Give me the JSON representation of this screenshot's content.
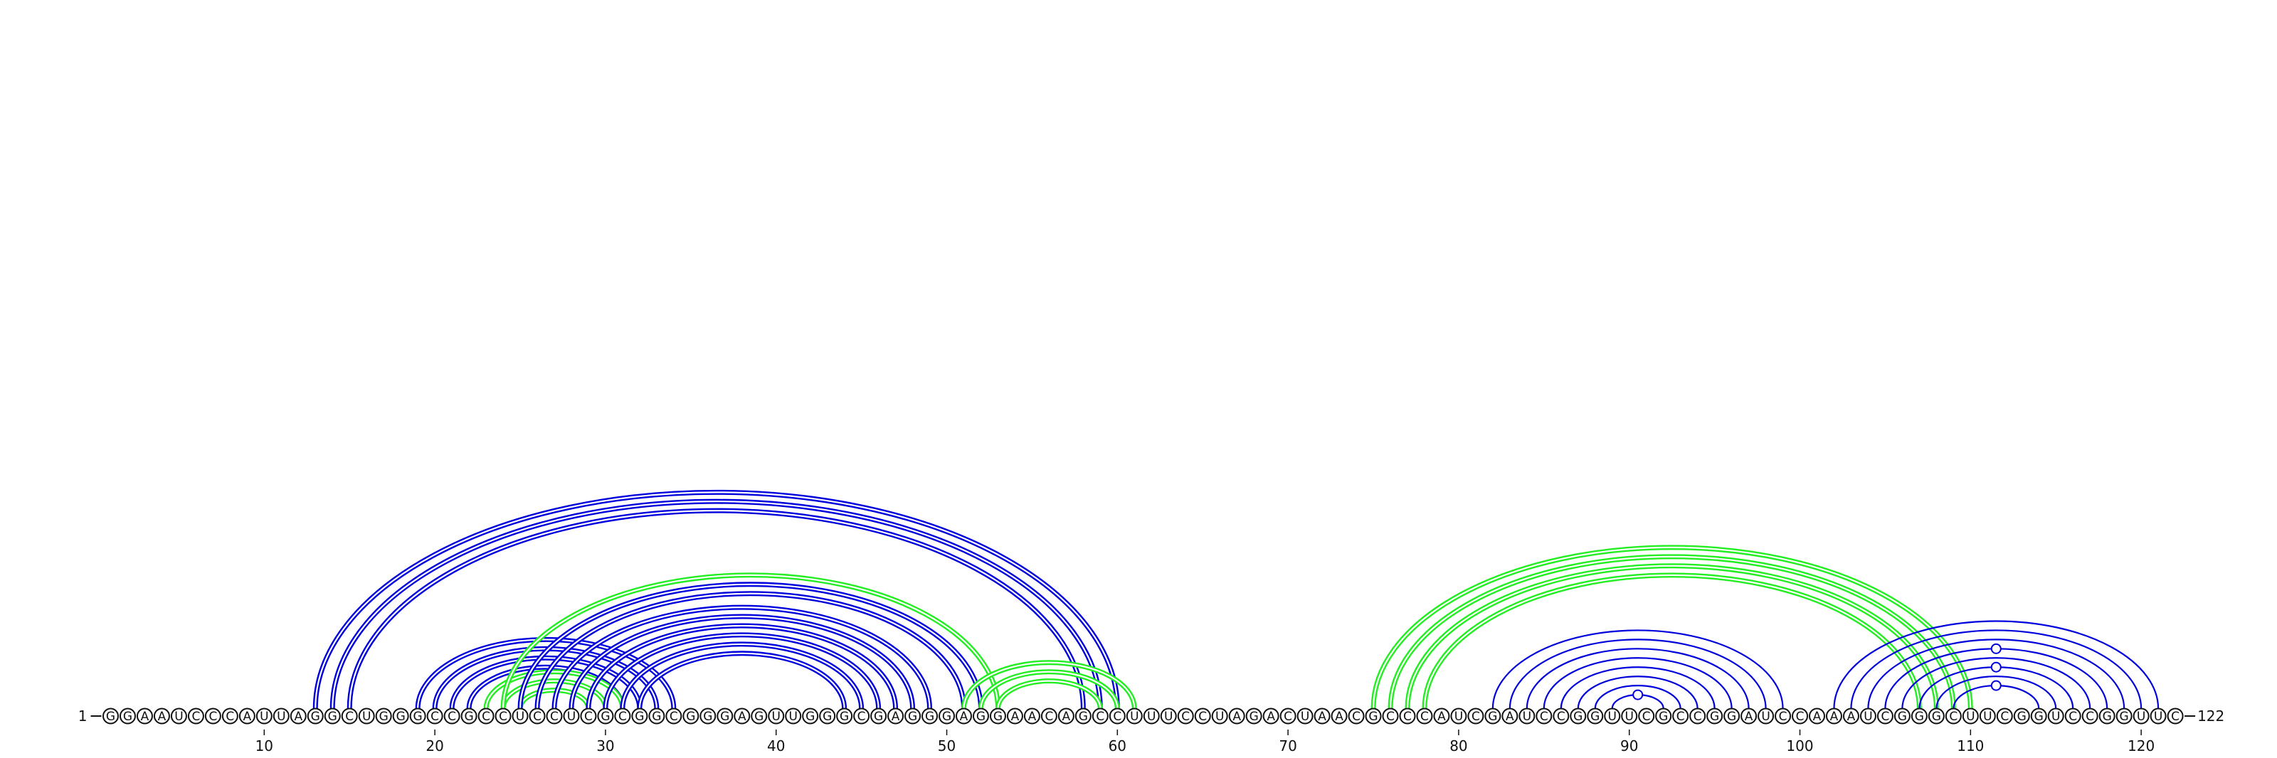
{
  "sequence": "GGAAUCCCAUUAGGCUGGGCCGCCUCCUCGCGGCGGGAGUUGGGCGAGGGAGGAACAGCCUUUCCUAGACUAACGCCCAUCGAUCCGGUUCGCCGGAUCCAAAUCGGGCUUCGGUCCGGUUC",
  "start_label": "1",
  "end_label": "122",
  "ticks": [
    "10",
    "20",
    "30",
    "40",
    "50",
    "60",
    "70",
    "80",
    "90",
    "100",
    "110",
    "120"
  ],
  "colors": {
    "blue": "#0000dd",
    "green": "#22ee22",
    "ink": "#111111"
  },
  "arcs": [
    {
      "i": 13,
      "j": 60,
      "color": "blue",
      "style": "double"
    },
    {
      "i": 14,
      "j": 59,
      "color": "blue",
      "style": "double"
    },
    {
      "i": 15,
      "j": 58,
      "color": "blue",
      "style": "double"
    },
    {
      "i": 19,
      "j": 34,
      "color": "blue",
      "style": "double"
    },
    {
      "i": 20,
      "j": 33,
      "color": "blue",
      "style": "double"
    },
    {
      "i": 21,
      "j": 32,
      "color": "blue",
      "style": "double"
    },
    {
      "i": 22,
      "j": 31,
      "color": "blue",
      "style": "double"
    },
    {
      "i": 23,
      "j": 31,
      "color": "green",
      "style": "double"
    },
    {
      "i": 24,
      "j": 30,
      "color": "green",
      "style": "double"
    },
    {
      "i": 25,
      "j": 29,
      "color": "green",
      "style": "double"
    },
    {
      "i": 24,
      "j": 53,
      "color": "green",
      "style": "double"
    },
    {
      "i": 25,
      "j": 52,
      "color": "blue",
      "style": "double"
    },
    {
      "i": 26,
      "j": 51,
      "color": "blue",
      "style": "double"
    },
    {
      "i": 27,
      "j": 49,
      "color": "blue",
      "style": "double"
    },
    {
      "i": 28,
      "j": 48,
      "color": "blue",
      "style": "double"
    },
    {
      "i": 29,
      "j": 47,
      "color": "blue",
      "style": "double"
    },
    {
      "i": 30,
      "j": 46,
      "color": "blue",
      "style": "double"
    },
    {
      "i": 31,
      "j": 45,
      "color": "blue",
      "style": "double"
    },
    {
      "i": 32,
      "j": 44,
      "color": "blue",
      "style": "double"
    },
    {
      "i": 51,
      "j": 61,
      "color": "green",
      "style": "double"
    },
    {
      "i": 52,
      "j": 60,
      "color": "green",
      "style": "double"
    },
    {
      "i": 53,
      "j": 59,
      "color": "green",
      "style": "double"
    },
    {
      "i": 75,
      "j": 110,
      "color": "green",
      "style": "double"
    },
    {
      "i": 76,
      "j": 109,
      "color": "green",
      "style": "double"
    },
    {
      "i": 77,
      "j": 108,
      "color": "green",
      "style": "double"
    },
    {
      "i": 78,
      "j": 107,
      "color": "green",
      "style": "double"
    },
    {
      "i": 82,
      "j": 99,
      "color": "blue",
      "style": "single"
    },
    {
      "i": 83,
      "j": 98,
      "color": "blue",
      "style": "single"
    },
    {
      "i": 84,
      "j": 97,
      "color": "blue",
      "style": "single"
    },
    {
      "i": 85,
      "j": 96,
      "color": "blue",
      "style": "single"
    },
    {
      "i": 86,
      "j": 95,
      "color": "blue",
      "style": "single"
    },
    {
      "i": 87,
      "j": 94,
      "color": "blue",
      "style": "single"
    },
    {
      "i": 88,
      "j": 93,
      "color": "blue",
      "style": "single"
    },
    {
      "i": 89,
      "j": 92,
      "color": "blue",
      "style": "single"
    },
    {
      "i": 102,
      "j": 121,
      "color": "blue",
      "style": "single"
    },
    {
      "i": 103,
      "j": 120,
      "color": "blue",
      "style": "single"
    },
    {
      "i": 104,
      "j": 119,
      "color": "blue",
      "style": "single"
    },
    {
      "i": 105,
      "j": 118,
      "color": "blue",
      "style": "single"
    },
    {
      "i": 106,
      "j": 117,
      "color": "blue",
      "style": "single"
    },
    {
      "i": 107,
      "j": 116,
      "color": "blue",
      "style": "single"
    },
    {
      "i": 108,
      "j": 115,
      "color": "blue",
      "style": "single"
    },
    {
      "i": 109,
      "j": 114,
      "color": "blue",
      "style": "single"
    }
  ],
  "markers": [
    {
      "at": 90.5,
      "level": 1
    },
    {
      "at": 111.5,
      "level": 1
    },
    {
      "at": 111.5,
      "level": 3
    },
    {
      "at": 111.5,
      "level": 5
    }
  ]
}
